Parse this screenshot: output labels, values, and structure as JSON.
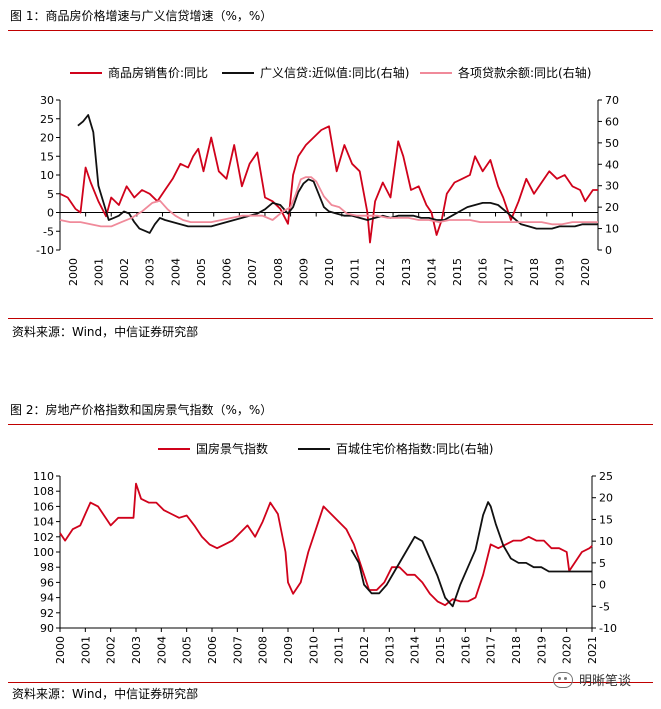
{
  "figure1": {
    "title": "图 1：商品房价格增速与广义信贷增速（%，%）",
    "source": "资料来源：Wind，中信证券研究部",
    "legend": [
      {
        "name": "商品房销售价:同比",
        "color": "#d0021b"
      },
      {
        "name": "广义信贷:近似值:同比(右轴)",
        "color": "#111111"
      },
      {
        "name": "各项贷款余额:同比(右轴)",
        "color": "#f08a9a"
      }
    ]
  },
  "figure2": {
    "title": "图 2：房地产价格指数和国房景气指数（%，%）",
    "source": "资料来源：Wind，中信证券研究部",
    "legend": [
      {
        "name": "国房景气指数",
        "color": "#d0021b"
      },
      {
        "name": "百城住宅价格指数:同比(右轴)",
        "color": "#111111"
      }
    ]
  },
  "watermark": "明晰笔谈",
  "chart_data": [
    {
      "type": "line",
      "title": "图 1：商品房价格增速与广义信贷增速（%，%）",
      "x_ticks": [
        "2000",
        "2001",
        "2002",
        "2003",
        "2004",
        "2005",
        "2006",
        "2007",
        "2008",
        "2009",
        "2010",
        "2011",
        "2012",
        "2013",
        "2014",
        "2015",
        "2016",
        "2017",
        "2018",
        "2019",
        "2020"
      ],
      "xlim": [
        2000,
        2021
      ],
      "ylim_left": [
        -10,
        30
      ],
      "ylim_right": [
        0,
        70
      ],
      "yticks_left": [
        "30",
        "25",
        "20",
        "15",
        "10",
        "5",
        "0",
        "-5",
        "-10"
      ],
      "yticks_right": [
        "70",
        "60",
        "50",
        "40",
        "30",
        "20",
        "10",
        "0"
      ],
      "grid": false,
      "legend_position": "top",
      "series": [
        {
          "name": "商品房销售价:同比",
          "axis": "left",
          "color": "#d0021b",
          "x": [
            2000.0,
            2000.3,
            2000.6,
            2000.8,
            2001.0,
            2001.2,
            2001.5,
            2001.8,
            2002.0,
            2002.3,
            2002.6,
            2002.9,
            2003.2,
            2003.5,
            2003.8,
            2004.1,
            2004.4,
            2004.7,
            2005.0,
            2005.2,
            2005.4,
            2005.6,
            2005.9,
            2006.2,
            2006.5,
            2006.8,
            2007.1,
            2007.4,
            2007.7,
            2008.0,
            2008.3,
            2008.6,
            2008.9,
            2009.1,
            2009.3,
            2009.6,
            2009.9,
            2010.2,
            2010.5,
            2010.8,
            2011.1,
            2011.4,
            2011.7,
            2012.0,
            2012.1,
            2012.3,
            2012.6,
            2012.9,
            2013.2,
            2013.4,
            2013.7,
            2014.0,
            2014.3,
            2014.5,
            2014.7,
            2014.9,
            2015.1,
            2015.4,
            2015.7,
            2016.0,
            2016.2,
            2016.5,
            2016.8,
            2017.1,
            2017.3,
            2017.6,
            2017.9,
            2018.2,
            2018.5,
            2018.8,
            2019.1,
            2019.4,
            2019.7,
            2020.0,
            2020.3,
            2020.5,
            2020.8,
            2021.0
          ],
          "y": [
            5,
            4,
            1,
            0,
            12,
            8,
            3,
            -1,
            4,
            2,
            7,
            4,
            6,
            5,
            3,
            6,
            9,
            13,
            12,
            15,
            17,
            11,
            20,
            11,
            9,
            18,
            7,
            13,
            16,
            4,
            3,
            1,
            -3,
            10,
            15,
            18,
            20,
            22,
            23,
            11,
            18,
            13,
            11,
            0,
            -8,
            3,
            8,
            4,
            19,
            15,
            6,
            7,
            2,
            0,
            -6,
            -2,
            5,
            8,
            9,
            10,
            15,
            11,
            14,
            7,
            4,
            -2,
            3,
            9,
            5,
            8,
            11,
            9,
            10,
            7,
            6,
            3,
            6,
            6
          ]
        },
        {
          "name": "广义信贷:近似值:同比(右轴)",
          "axis": "right",
          "color": "#111111",
          "x": [
            2000.7,
            2000.9,
            2001.1,
            2001.3,
            2001.5,
            2001.7,
            2001.9,
            2002.1,
            2002.3,
            2002.5,
            2002.7,
            2002.9,
            2003.1,
            2003.3,
            2003.5,
            2003.7,
            2003.9,
            2004.1,
            2004.4,
            2004.7,
            2005.0,
            2005.3,
            2005.6,
            2005.9,
            2006.2,
            2006.5,
            2006.8,
            2007.1,
            2007.4,
            2007.7,
            2008.0,
            2008.3,
            2008.6,
            2008.9,
            2009.1,
            2009.3,
            2009.5,
            2009.7,
            2009.9,
            2010.1,
            2010.3,
            2010.5,
            2010.8,
            2011.1,
            2011.4,
            2011.7,
            2012.0,
            2012.3,
            2012.6,
            2012.9,
            2013.2,
            2013.5,
            2013.8,
            2014.1,
            2014.4,
            2014.7,
            2015.0,
            2015.3,
            2015.6,
            2015.9,
            2016.2,
            2016.5,
            2016.8,
            2017.1,
            2017.4,
            2017.7,
            2018.0,
            2018.3,
            2018.6,
            2018.9,
            2019.2,
            2019.5,
            2019.8,
            2020.1,
            2020.4,
            2020.7,
            2021.0
          ],
          "y": [
            58,
            60,
            63,
            55,
            30,
            22,
            14,
            15,
            16,
            18,
            17,
            13,
            10,
            9,
            8,
            12,
            15,
            14,
            13,
            12,
            11,
            11,
            11,
            11,
            12,
            13,
            14,
            15,
            16,
            17,
            19,
            22,
            21,
            17,
            20,
            27,
            31,
            33,
            32,
            26,
            20,
            18,
            17,
            16,
            16,
            15,
            14,
            15,
            16,
            15,
            16,
            16,
            16,
            15,
            15,
            14,
            14,
            16,
            18,
            20,
            21,
            22,
            22,
            21,
            18,
            15,
            12,
            11,
            10,
            10,
            10,
            11,
            11,
            11,
            12,
            12,
            12
          ]
        },
        {
          "name": "各项贷款余额:同比(右轴)",
          "axis": "right",
          "color": "#f08a9a",
          "x": [
            2000.0,
            2000.4,
            2000.8,
            2001.2,
            2001.6,
            2002.0,
            2002.4,
            2002.8,
            2003.2,
            2003.6,
            2003.9,
            2004.2,
            2004.5,
            2004.8,
            2005.1,
            2005.5,
            2005.9,
            2006.3,
            2006.7,
            2007.1,
            2007.5,
            2007.9,
            2008.3,
            2008.7,
            2009.0,
            2009.2,
            2009.4,
            2009.6,
            2009.8,
            2010.0,
            2010.3,
            2010.6,
            2010.9,
            2011.2,
            2011.6,
            2012.0,
            2012.4,
            2012.8,
            2013.2,
            2013.6,
            2014.0,
            2014.4,
            2014.8,
            2015.2,
            2015.6,
            2016.0,
            2016.4,
            2016.8,
            2017.2,
            2017.6,
            2018.0,
            2018.4,
            2018.8,
            2019.2,
            2019.6,
            2020.0,
            2020.4,
            2020.8,
            2021.0
          ],
          "y": [
            14,
            13,
            13,
            12,
            11,
            11,
            13,
            15,
            18,
            22,
            23,
            19,
            16,
            14,
            13,
            13,
            13,
            14,
            15,
            16,
            16,
            16,
            14,
            18,
            20,
            26,
            33,
            34,
            34,
            32,
            25,
            21,
            20,
            17,
            16,
            16,
            16,
            15,
            15,
            15,
            14,
            14,
            13,
            14,
            14,
            14,
            13,
            13,
            13,
            13,
            13,
            13,
            13,
            12,
            12,
            13,
            13,
            13,
            13
          ]
        }
      ]
    },
    {
      "type": "line",
      "title": "图 2：房地产价格指数和国房景气指数（%，%）",
      "x_ticks": [
        "2000",
        "2001",
        "2002",
        "2003",
        "2004",
        "2005",
        "2006",
        "2007",
        "2008",
        "2009",
        "2010",
        "2011",
        "2012",
        "2013",
        "2014",
        "2015",
        "2016",
        "2017",
        "2018",
        "2019",
        "2020",
        "2021"
      ],
      "xlim": [
        2000,
        2021
      ],
      "ylim_left": [
        90,
        110
      ],
      "ylim_right": [
        -10,
        25
      ],
      "yticks_left": [
        "110",
        "108",
        "106",
        "104",
        "102",
        "100",
        "98",
        "96",
        "94",
        "92",
        "90"
      ],
      "yticks_right": [
        "25",
        "20",
        "15",
        "10",
        "5",
        "0",
        "-5",
        "-10"
      ],
      "grid": false,
      "legend_position": "top",
      "series": [
        {
          "name": "国房景气指数",
          "axis": "left",
          "color": "#d0021b",
          "x": [
            2000.0,
            2000.2,
            2000.5,
            2000.8,
            2001.0,
            2001.2,
            2001.5,
            2001.8,
            2002.0,
            2002.3,
            2002.6,
            2002.9,
            2003.0,
            2003.2,
            2003.5,
            2003.8,
            2004.1,
            2004.4,
            2004.7,
            2005.0,
            2005.3,
            2005.6,
            2005.9,
            2006.2,
            2006.5,
            2006.8,
            2007.1,
            2007.4,
            2007.7,
            2008.0,
            2008.3,
            2008.6,
            2008.9,
            2009.0,
            2009.2,
            2009.5,
            2009.8,
            2010.1,
            2010.4,
            2010.7,
            2011.0,
            2011.3,
            2011.6,
            2011.9,
            2012.2,
            2012.5,
            2012.8,
            2013.1,
            2013.4,
            2013.7,
            2014.0,
            2014.3,
            2014.6,
            2014.9,
            2015.2,
            2015.5,
            2015.8,
            2016.1,
            2016.4,
            2016.7,
            2017.0,
            2017.3,
            2017.6,
            2017.9,
            2018.2,
            2018.5,
            2018.8,
            2019.1,
            2019.4,
            2019.7,
            2020.0,
            2020.1,
            2020.3,
            2020.6,
            2020.9,
            2021.0
          ],
          "y": [
            102.5,
            101.5,
            103,
            103.5,
            105,
            106.5,
            106,
            104.5,
            103.5,
            104.5,
            104.5,
            104.5,
            109,
            107,
            106.5,
            106.5,
            105.5,
            105,
            104.5,
            104.8,
            103.5,
            102,
            101,
            100.5,
            101,
            101.5,
            102.5,
            103.5,
            102,
            104,
            106.5,
            105,
            100,
            96,
            94.5,
            96,
            100,
            103,
            106,
            105,
            104,
            103,
            101,
            98,
            95,
            95,
            96,
            98,
            98,
            97,
            97,
            96,
            94.5,
            93.5,
            93,
            93.8,
            93.5,
            93.5,
            94,
            97,
            101,
            100.5,
            101,
            101.5,
            101.5,
            102,
            101.5,
            101.5,
            100.5,
            100.5,
            100,
            97.5,
            98.5,
            100,
            100.5,
            100.8
          ]
        },
        {
          "name": "百城住宅价格指数:同比(右轴)",
          "axis": "right",
          "color": "#111111",
          "x": [
            2011.5,
            2011.8,
            2012.0,
            2012.3,
            2012.6,
            2012.9,
            2013.2,
            2013.5,
            2013.8,
            2014.0,
            2014.3,
            2014.6,
            2014.9,
            2015.2,
            2015.5,
            2015.8,
            2016.1,
            2016.4,
            2016.7,
            2016.9,
            2017.0,
            2017.2,
            2017.5,
            2017.8,
            2018.1,
            2018.4,
            2018.7,
            2019.0,
            2019.3,
            2019.6,
            2019.9,
            2020.2,
            2020.5,
            2020.8,
            2021.0
          ],
          "y": [
            8,
            5,
            0,
            -2,
            -2,
            0,
            3,
            6,
            9,
            11,
            10,
            6,
            2,
            -3,
            -5,
            0,
            4,
            8,
            16,
            19,
            18,
            14,
            9,
            6,
            5,
            5,
            4,
            4,
            3,
            3,
            3,
            3,
            3,
            3,
            3
          ]
        }
      ]
    }
  ]
}
